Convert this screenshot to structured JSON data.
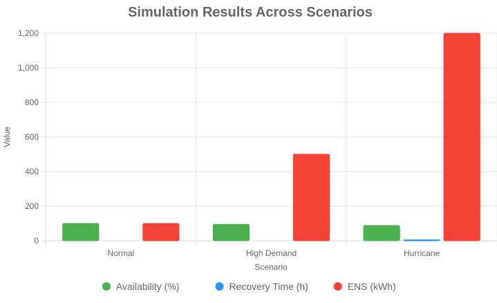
{
  "chart_data": {
    "type": "bar",
    "title": "Simulation Results Across Scenarios",
    "xlabel": "Scenario",
    "ylabel": "Value",
    "categories": [
      "Normal",
      "High Demand",
      "Hurricane"
    ],
    "series": [
      {
        "name": "Availability (%)",
        "values": [
          99.9,
          95,
          88
        ],
        "color": "#4caf50"
      },
      {
        "name": "Recovery Time (h)",
        "values": [
          0,
          0,
          5
        ],
        "color": "#2196f3"
      },
      {
        "name": "ENS (kWh)",
        "values": [
          100,
          500,
          1200
        ],
        "color": "#f44336"
      }
    ],
    "ylim": [
      0,
      1200
    ],
    "yticks": [
      0,
      200,
      400,
      600,
      800,
      1000,
      1200
    ],
    "ytick_labels": [
      "0",
      "200",
      "400",
      "600",
      "800",
      "1,000",
      "1,200"
    ],
    "grid": true,
    "legend_position": "bottom"
  }
}
